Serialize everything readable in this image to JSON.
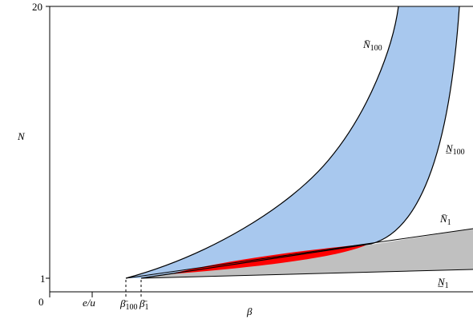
{
  "chart_data": {
    "type": "area",
    "title": "",
    "xlabel": "β",
    "ylabel": "N",
    "y_ticks": [
      "1",
      "20"
    ],
    "x_origin_label": "0",
    "x_tick_labels": [
      {
        "main": "e/u",
        "sub": ""
      },
      {
        "main": "β̄",
        "sub": "100"
      },
      {
        "main": "β̄",
        "sub": "1"
      }
    ],
    "curve_labels": [
      {
        "main": "N̄",
        "sub": "100"
      },
      {
        "main": "N̲",
        "sub": "100"
      },
      {
        "main": "N̄",
        "sub": "1"
      },
      {
        "main": "N̲",
        "sub": "1"
      }
    ],
    "regions": [
      {
        "name": "",
        "color": "#a8c8ee"
      },
      {
        "name": "",
        "color": "#c0c0c0"
      },
      {
        "name": "",
        "color": "#ff0000"
      }
    ],
    "grid": false
  }
}
